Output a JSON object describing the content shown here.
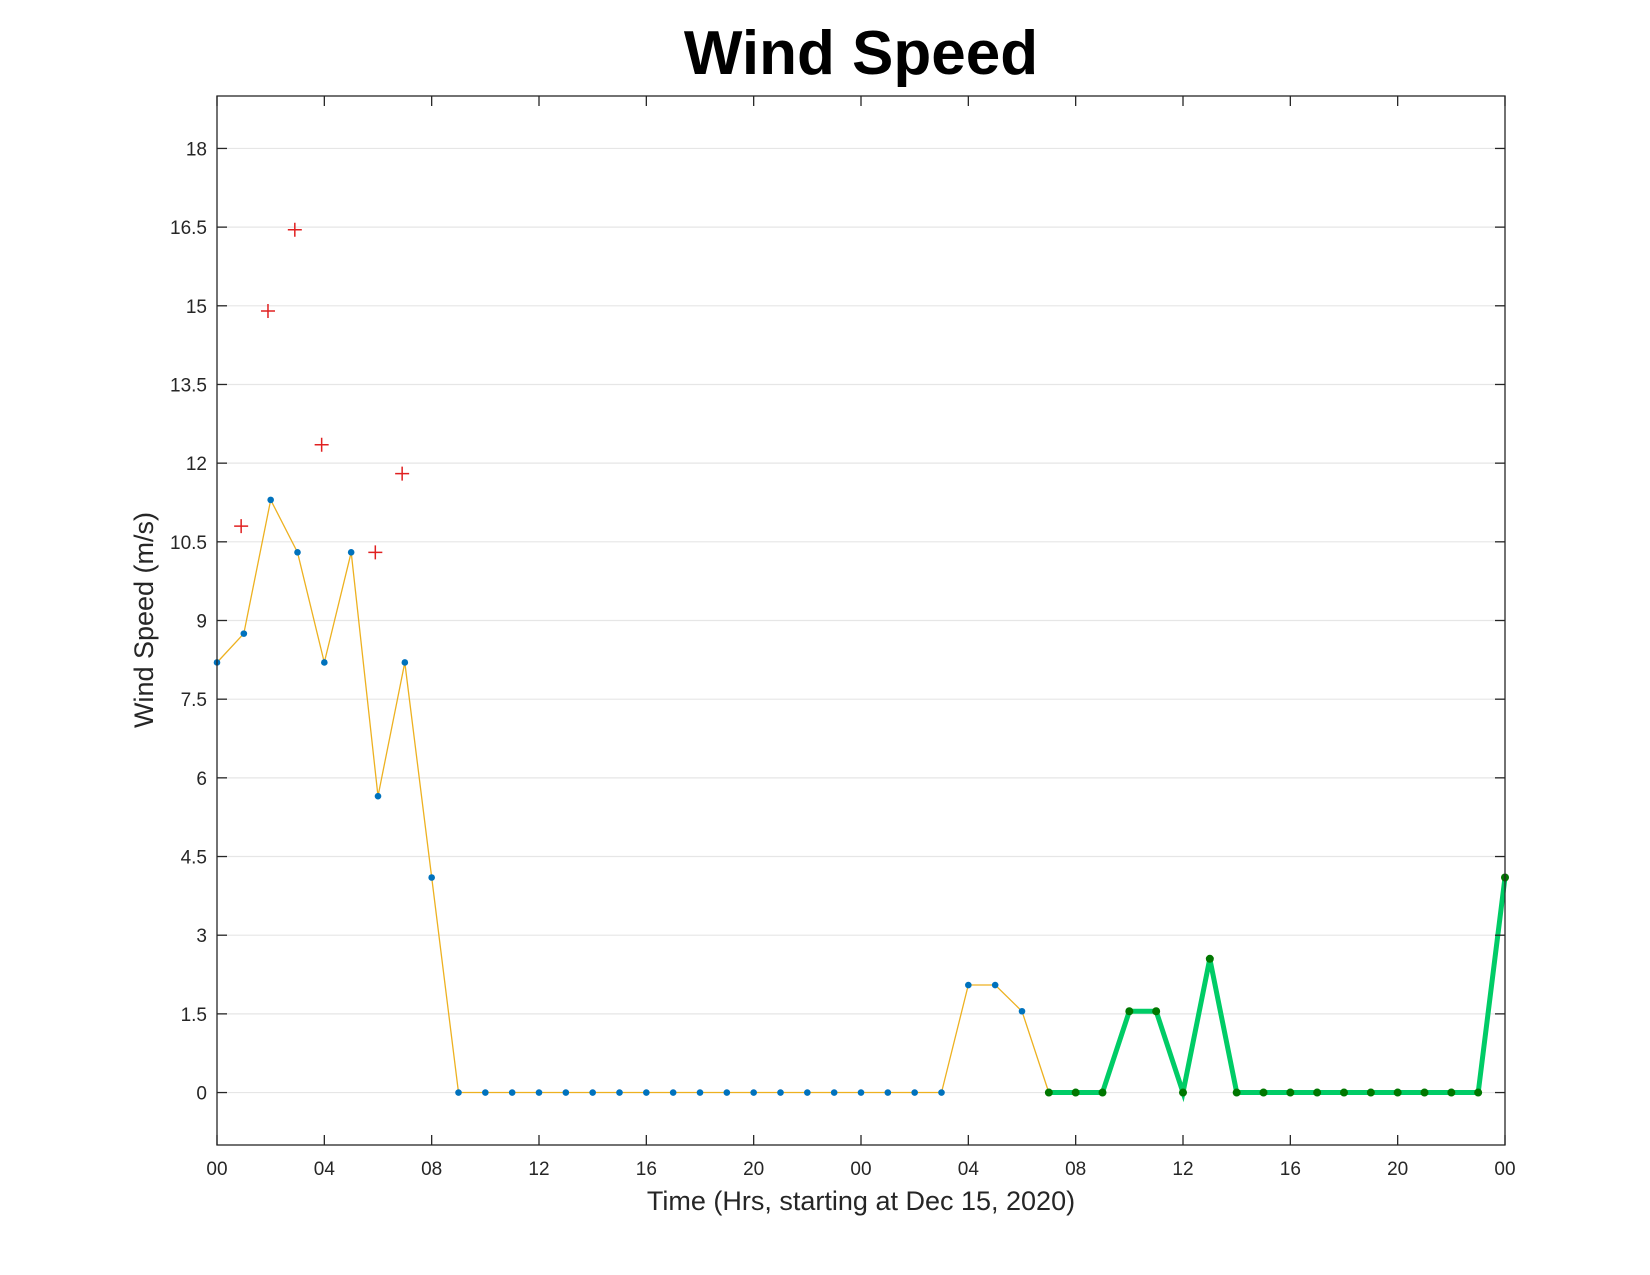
{
  "chart_data": {
    "type": "line",
    "title": "Wind Speed",
    "xlabel": "Time (Hrs, starting at Dec 15, 2020)",
    "ylabel": "Wind Speed (m/s)",
    "xlim": [
      0,
      48
    ],
    "ylim": [
      -1,
      19
    ],
    "x_ticks": [
      {
        "hour": 0,
        "label": "00"
      },
      {
        "hour": 4,
        "label": "04"
      },
      {
        "hour": 8,
        "label": "08"
      },
      {
        "hour": 12,
        "label": "12"
      },
      {
        "hour": 16,
        "label": "16"
      },
      {
        "hour": 20,
        "label": "20"
      },
      {
        "hour": 24,
        "label": "00"
      },
      {
        "hour": 28,
        "label": "04"
      },
      {
        "hour": 32,
        "label": "08"
      },
      {
        "hour": 36,
        "label": "12"
      },
      {
        "hour": 40,
        "label": "16"
      },
      {
        "hour": 44,
        "label": "20"
      },
      {
        "hour": 48,
        "label": "00"
      }
    ],
    "y_ticks": [
      {
        "value": 0,
        "label": "0"
      },
      {
        "value": 1.5,
        "label": "1.5"
      },
      {
        "value": 3,
        "label": "3"
      },
      {
        "value": 4.5,
        "label": "4.5"
      },
      {
        "value": 6,
        "label": "6"
      },
      {
        "value": 7.5,
        "label": "7.5"
      },
      {
        "value": 9,
        "label": "9"
      },
      {
        "value": 10.5,
        "label": "10.5"
      },
      {
        "value": 12,
        "label": "12"
      },
      {
        "value": 13.5,
        "label": "13.5"
      },
      {
        "value": 15,
        "label": "15"
      },
      {
        "value": 16.5,
        "label": "16.5"
      },
      {
        "value": 18,
        "label": "18"
      }
    ],
    "grid": "horizontal",
    "series": [
      {
        "style": "thin-line-with-dots",
        "line_color": "#EDB120",
        "marker_color": "#0072BD",
        "x": [
          0,
          1,
          2,
          3,
          4,
          5,
          6,
          7,
          8,
          9,
          10,
          11,
          12,
          13,
          14,
          15,
          16,
          17,
          18,
          19,
          20,
          21,
          22,
          23,
          24,
          25,
          26,
          27,
          28,
          29,
          30,
          31
        ],
        "y": [
          8.2,
          8.75,
          11.3,
          10.3,
          8.2,
          10.3,
          5.65,
          8.2,
          4.1,
          0,
          0,
          0,
          0,
          0,
          0,
          0,
          0,
          0,
          0,
          0,
          0,
          0,
          0,
          0,
          0,
          0,
          0,
          0,
          2.05,
          2.05,
          1.55,
          0
        ]
      },
      {
        "style": "thick-line-with-dots",
        "line_color": "#00CC66",
        "marker_color": "#007700",
        "x": [
          31,
          32,
          33,
          34,
          35,
          36,
          37,
          38,
          39,
          40,
          41,
          42,
          43,
          44,
          45,
          46,
          47,
          48
        ],
        "y": [
          0,
          0,
          0,
          1.55,
          1.55,
          0,
          2.55,
          0,
          0,
          0,
          0,
          0,
          0,
          0,
          0,
          0,
          0,
          4.1
        ]
      },
      {
        "style": "plus-markers",
        "marker_color": "#E02020",
        "x": [
          0.9,
          1.9,
          2.9,
          3.9,
          5.9,
          6.9
        ],
        "y": [
          10.8,
          14.9,
          16.45,
          12.35,
          10.3,
          11.8
        ]
      }
    ]
  }
}
